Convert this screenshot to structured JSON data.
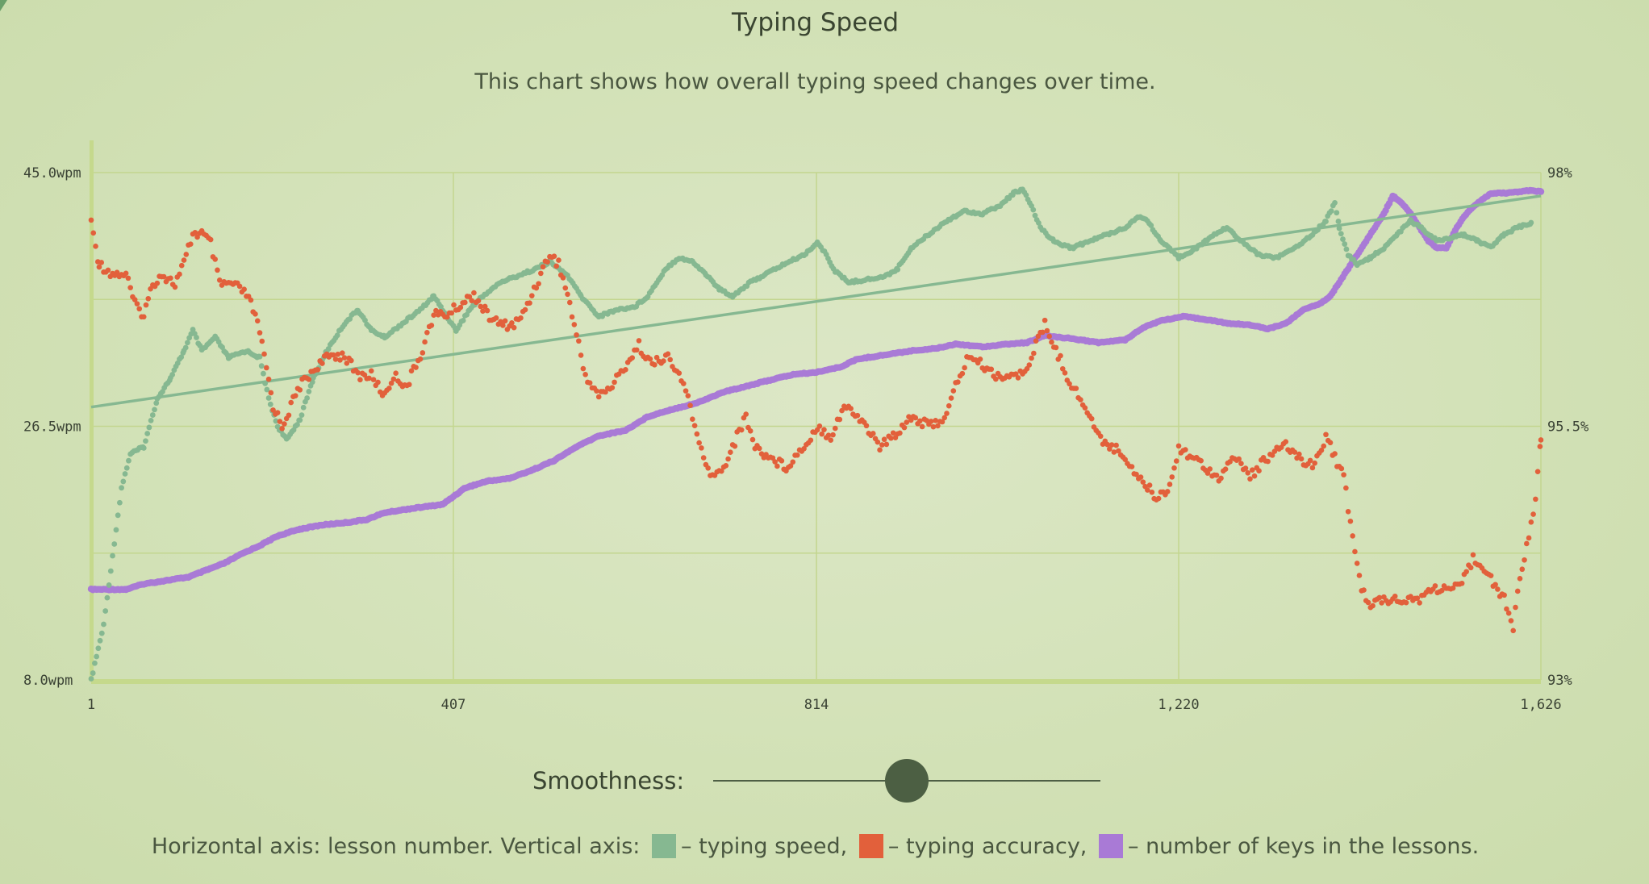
{
  "page": {
    "title": "Typing Speed",
    "subtitle": "This chart shows how overall typing speed changes over time."
  },
  "controls": {
    "smoothness_label": "Smoothness:",
    "smoothness_value": 0.5
  },
  "legend": {
    "prefix": "Horizontal axis: lesson number. Vertical axis:",
    "speed_text": "– typing speed,",
    "accuracy_text": "– typing accuracy,",
    "keys_text": "– number of keys in the lessons.",
    "speed_color": "#86b891",
    "accuracy_color": "#e2603b",
    "keys_color": "#a97ad6"
  },
  "chart_data": {
    "type": "scatter",
    "title": "Typing Speed",
    "xlabel": "lesson number",
    "ylabel": "typing speed",
    "x_ticks": [
      "1",
      "407",
      "814",
      "1,220",
      "1,626"
    ],
    "x_tick_values": [
      1,
      407,
      814,
      1220,
      1626
    ],
    "xlim": [
      1,
      1626
    ],
    "y_left_ticks": [
      "45.0wpm",
      "26.5wpm",
      "8.0wpm"
    ],
    "y_left_lim": [
      8.0,
      45.0
    ],
    "y_right_ticks": [
      "98%",
      "95.5%",
      "93%"
    ],
    "y_right_lim": [
      93,
      98
    ],
    "gridlines": true,
    "series": [
      {
        "name": "typing speed",
        "axis": "left",
        "color": "#86b891",
        "points": [
          [
            1,
            8
          ],
          [
            15,
            12
          ],
          [
            25,
            17
          ],
          [
            35,
            22
          ],
          [
            45,
            24.5
          ],
          [
            60,
            25
          ],
          [
            75,
            28.5
          ],
          [
            90,
            30
          ],
          [
            105,
            32
          ],
          [
            115,
            33.5
          ],
          [
            125,
            32
          ],
          [
            140,
            33
          ],
          [
            155,
            31.5
          ],
          [
            175,
            32
          ],
          [
            190,
            31.5
          ],
          [
            200,
            28.5
          ],
          [
            210,
            26.5
          ],
          [
            220,
            25.5
          ],
          [
            235,
            27
          ],
          [
            250,
            30
          ],
          [
            265,
            32
          ],
          [
            275,
            33
          ],
          [
            285,
            34
          ],
          [
            300,
            35
          ],
          [
            315,
            33.5
          ],
          [
            330,
            33
          ],
          [
            350,
            34
          ],
          [
            370,
            35
          ],
          [
            385,
            36
          ],
          [
            395,
            35
          ],
          [
            410,
            33.5
          ],
          [
            425,
            35
          ],
          [
            440,
            36
          ],
          [
            460,
            37
          ],
          [
            480,
            37.5
          ],
          [
            500,
            38
          ],
          [
            515,
            38.5
          ],
          [
            535,
            37.5
          ],
          [
            550,
            36
          ],
          [
            570,
            34.5
          ],
          [
            590,
            35
          ],
          [
            610,
            35.2
          ],
          [
            625,
            36
          ],
          [
            645,
            38
          ],
          [
            660,
            38.8
          ],
          [
            675,
            38.5
          ],
          [
            690,
            37.6
          ],
          [
            705,
            36.5
          ],
          [
            720,
            36
          ],
          [
            740,
            37
          ],
          [
            760,
            37.7
          ],
          [
            780,
            38.4
          ],
          [
            800,
            39
          ],
          [
            815,
            39.9
          ],
          [
            825,
            39
          ],
          [
            835,
            37.8
          ],
          [
            850,
            37
          ],
          [
            870,
            37.2
          ],
          [
            890,
            37.4
          ],
          [
            905,
            38
          ],
          [
            920,
            39.5
          ],
          [
            940,
            40.5
          ],
          [
            960,
            41.5
          ],
          [
            980,
            42.2
          ],
          [
            1000,
            42
          ],
          [
            1020,
            42.6
          ],
          [
            1035,
            43.5
          ],
          [
            1045,
            43.8
          ],
          [
            1055,
            42.5
          ],
          [
            1065,
            41
          ],
          [
            1080,
            40
          ],
          [
            1100,
            39.5
          ],
          [
            1120,
            40
          ],
          [
            1140,
            40.5
          ],
          [
            1160,
            41
          ],
          [
            1175,
            41.8
          ],
          [
            1185,
            41.5
          ],
          [
            1200,
            40
          ],
          [
            1220,
            38.8
          ],
          [
            1240,
            39.5
          ],
          [
            1260,
            40.5
          ],
          [
            1275,
            41
          ],
          [
            1290,
            40
          ],
          [
            1310,
            39
          ],
          [
            1330,
            38.8
          ],
          [
            1350,
            39.5
          ],
          [
            1370,
            40.5
          ],
          [
            1385,
            41.5
          ],
          [
            1395,
            42.8
          ],
          [
            1400,
            41
          ],
          [
            1410,
            39
          ],
          [
            1420,
            38.3
          ],
          [
            1435,
            38.8
          ],
          [
            1450,
            39.5
          ],
          [
            1465,
            40.5
          ],
          [
            1480,
            41.5
          ],
          [
            1495,
            40.8
          ],
          [
            1510,
            40
          ],
          [
            1525,
            40.2
          ],
          [
            1540,
            40.5
          ],
          [
            1555,
            40
          ],
          [
            1570,
            39.6
          ],
          [
            1585,
            40.5
          ],
          [
            1600,
            41
          ],
          [
            1615,
            41.3
          ]
        ]
      },
      {
        "name": "typing accuracy",
        "axis": "right",
        "color": "#e2603b",
        "points": [
          [
            1,
            97.5
          ],
          [
            10,
            97.1
          ],
          [
            25,
            97
          ],
          [
            40,
            97
          ],
          [
            50,
            96.7
          ],
          [
            60,
            96.6
          ],
          [
            70,
            96.9
          ],
          [
            80,
            97
          ],
          [
            95,
            96.9
          ],
          [
            105,
            97.1
          ],
          [
            115,
            97.4
          ],
          [
            125,
            97.4
          ],
          [
            135,
            97.3
          ],
          [
            145,
            96.9
          ],
          [
            160,
            96.9
          ],
          [
            175,
            96.8
          ],
          [
            185,
            96.6
          ],
          [
            195,
            96.2
          ],
          [
            205,
            95.7
          ],
          [
            215,
            95.5
          ],
          [
            225,
            95.7
          ],
          [
            235,
            95.9
          ],
          [
            245,
            96
          ],
          [
            255,
            96.1
          ],
          [
            270,
            96.2
          ],
          [
            285,
            96.2
          ],
          [
            300,
            96
          ],
          [
            315,
            96
          ],
          [
            330,
            95.8
          ],
          [
            340,
            96
          ],
          [
            355,
            95.9
          ],
          [
            370,
            96.2
          ],
          [
            385,
            96.6
          ],
          [
            400,
            96.6
          ],
          [
            415,
            96.7
          ],
          [
            430,
            96.8
          ],
          [
            445,
            96.6
          ],
          [
            460,
            96.5
          ],
          [
            475,
            96.5
          ],
          [
            485,
            96.6
          ],
          [
            495,
            96.8
          ],
          [
            505,
            97
          ],
          [
            515,
            97.2
          ],
          [
            525,
            97.1
          ],
          [
            535,
            96.8
          ],
          [
            545,
            96.4
          ],
          [
            555,
            96
          ],
          [
            570,
            95.8
          ],
          [
            585,
            95.9
          ],
          [
            600,
            96.1
          ],
          [
            615,
            96.3
          ],
          [
            630,
            96.1
          ],
          [
            645,
            96.2
          ],
          [
            660,
            96
          ],
          [
            670,
            95.8
          ],
          [
            680,
            95.4
          ],
          [
            690,
            95.1
          ],
          [
            700,
            95
          ],
          [
            710,
            95.1
          ],
          [
            720,
            95.3
          ],
          [
            735,
            95.6
          ],
          [
            745,
            95.3
          ],
          [
            760,
            95.2
          ],
          [
            780,
            95.1
          ],
          [
            800,
            95.3
          ],
          [
            815,
            95.5
          ],
          [
            830,
            95.4
          ],
          [
            845,
            95.7
          ],
          [
            860,
            95.6
          ],
          [
            870,
            95.5
          ],
          [
            885,
            95.3
          ],
          [
            900,
            95.4
          ],
          [
            920,
            95.6
          ],
          [
            940,
            95.5
          ],
          [
            960,
            95.6
          ],
          [
            970,
            95.9
          ],
          [
            985,
            96.2
          ],
          [
            1000,
            96.1
          ],
          [
            1015,
            96
          ],
          [
            1030,
            96
          ],
          [
            1045,
            96
          ],
          [
            1060,
            96.3
          ],
          [
            1070,
            96.5
          ],
          [
            1085,
            96.2
          ],
          [
            1100,
            95.9
          ],
          [
            1115,
            95.7
          ],
          [
            1130,
            95.4
          ],
          [
            1145,
            95.3
          ],
          [
            1160,
            95.2
          ],
          [
            1175,
            95
          ],
          [
            1195,
            94.8
          ],
          [
            1210,
            94.9
          ],
          [
            1220,
            95.3
          ],
          [
            1235,
            95.2
          ],
          [
            1250,
            95.1
          ],
          [
            1265,
            95
          ],
          [
            1285,
            95.2
          ],
          [
            1300,
            95
          ],
          [
            1320,
            95.2
          ],
          [
            1340,
            95.3
          ],
          [
            1355,
            95.2
          ],
          [
            1370,
            95.1
          ],
          [
            1385,
            95.4
          ],
          [
            1395,
            95.2
          ],
          [
            1405,
            95
          ],
          [
            1415,
            94.4
          ],
          [
            1425,
            93.9
          ],
          [
            1435,
            93.7
          ],
          [
            1445,
            93.8
          ],
          [
            1460,
            93.8
          ],
          [
            1475,
            93.8
          ],
          [
            1490,
            93.8
          ],
          [
            1505,
            93.9
          ],
          [
            1520,
            93.9
          ],
          [
            1535,
            93.9
          ],
          [
            1550,
            94.2
          ],
          [
            1565,
            94.1
          ],
          [
            1575,
            93.9
          ],
          [
            1585,
            93.8
          ],
          [
            1595,
            93.5
          ],
          [
            1600,
            93.9
          ],
          [
            1610,
            94.3
          ],
          [
            1620,
            94.8
          ],
          [
            1626,
            95.4
          ]
        ]
      },
      {
        "name": "number of keys in the lessons",
        "axis": "left",
        "color": "#a97ad6",
        "points": [
          [
            1,
            14.6
          ],
          [
            40,
            14.6
          ],
          [
            60,
            15
          ],
          [
            90,
            15.3
          ],
          [
            110,
            15.5
          ],
          [
            130,
            16
          ],
          [
            150,
            16.5
          ],
          [
            170,
            17.2
          ],
          [
            190,
            17.8
          ],
          [
            210,
            18.5
          ],
          [
            235,
            19
          ],
          [
            260,
            19.3
          ],
          [
            290,
            19.5
          ],
          [
            310,
            19.7
          ],
          [
            330,
            20.2
          ],
          [
            360,
            20.5
          ],
          [
            395,
            20.8
          ],
          [
            420,
            22
          ],
          [
            445,
            22.5
          ],
          [
            470,
            22.7
          ],
          [
            495,
            23.3
          ],
          [
            520,
            24
          ],
          [
            545,
            25
          ],
          [
            570,
            25.8
          ],
          [
            600,
            26.2
          ],
          [
            625,
            27.2
          ],
          [
            650,
            27.7
          ],
          [
            680,
            28.2
          ],
          [
            710,
            29
          ],
          [
            740,
            29.5
          ],
          [
            770,
            30
          ],
          [
            790,
            30.3
          ],
          [
            810,
            30.4
          ],
          [
            840,
            30.8
          ],
          [
            860,
            31.4
          ],
          [
            890,
            31.7
          ],
          [
            920,
            32
          ],
          [
            950,
            32.2
          ],
          [
            970,
            32.5
          ],
          [
            1000,
            32.3
          ],
          [
            1030,
            32.5
          ],
          [
            1050,
            32.6
          ],
          [
            1070,
            33.1
          ],
          [
            1100,
            32.9
          ],
          [
            1130,
            32.6
          ],
          [
            1160,
            32.8
          ],
          [
            1180,
            33.7
          ],
          [
            1200,
            34.2
          ],
          [
            1225,
            34.5
          ],
          [
            1250,
            34.3
          ],
          [
            1275,
            34
          ],
          [
            1300,
            33.9
          ],
          [
            1320,
            33.6
          ],
          [
            1340,
            34
          ],
          [
            1360,
            35
          ],
          [
            1380,
            35.5
          ],
          [
            1390,
            36
          ],
          [
            1400,
            37
          ],
          [
            1410,
            38
          ],
          [
            1420,
            39
          ],
          [
            1430,
            40
          ],
          [
            1440,
            41
          ],
          [
            1450,
            42
          ],
          [
            1460,
            43.3
          ],
          [
            1470,
            42.8
          ],
          [
            1480,
            42
          ],
          [
            1490,
            41
          ],
          [
            1500,
            40
          ],
          [
            1510,
            39.5
          ],
          [
            1520,
            39.5
          ],
          [
            1530,
            40.8
          ],
          [
            1540,
            41.8
          ],
          [
            1550,
            42.5
          ],
          [
            1560,
            43
          ],
          [
            1570,
            43.5
          ],
          [
            1585,
            43.5
          ],
          [
            1600,
            43.6
          ],
          [
            1615,
            43.7
          ],
          [
            1626,
            43.6
          ]
        ]
      },
      {
        "name": "typing speed trend",
        "axis": "left",
        "color": "#86b891",
        "style": "line",
        "points": [
          [
            1,
            27.9
          ],
          [
            1626,
            43.3
          ]
        ]
      }
    ]
  }
}
